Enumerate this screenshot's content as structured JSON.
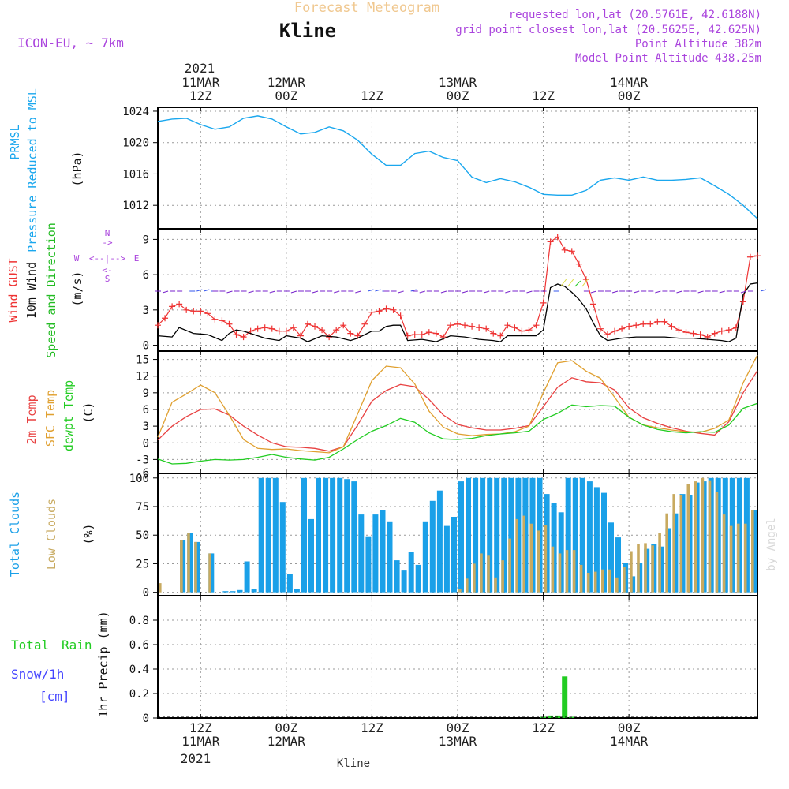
{
  "header": {
    "title": "Forecast Meteogram",
    "station": "Kline",
    "model": "ICON-EU, ~ 7km",
    "requested": "requested lon,lat (20.5761E, 42.6188N)",
    "gridpoint": "grid point closest lon,lat (20.5625E, 42.625N)",
    "point_alt": "Point Altitude 382m",
    "model_alt": "Model Point Altitude 438.25m",
    "footer_station": "Kline",
    "watermark": "by Angel"
  },
  "time_axis": {
    "hour_start": 0,
    "hour_end": 84,
    "top_year": "2021",
    "bottom_year": "2021",
    "ticks": [
      {
        "hour": 6,
        "top": [
          "11MAR",
          "12Z"
        ],
        "bottom": [
          "12Z",
          "11MAR"
        ]
      },
      {
        "hour": 18,
        "top": [
          "12MAR",
          "00Z"
        ],
        "bottom": [
          "00Z",
          "12MAR"
        ]
      },
      {
        "hour": 30,
        "top": [
          "12Z"
        ],
        "bottom": [
          "12Z"
        ]
      },
      {
        "hour": 42,
        "top": [
          "13MAR",
          "00Z"
        ],
        "bottom": [
          "00Z",
          "13MAR"
        ]
      },
      {
        "hour": 54,
        "top": [
          "12Z"
        ],
        "bottom": [
          "12Z"
        ]
      },
      {
        "hour": 66,
        "top": [
          "14MAR",
          "00Z"
        ],
        "bottom": [
          "00Z",
          "14MAR"
        ]
      }
    ]
  },
  "legend": {
    "pressure": [
      "PRMSL",
      "Pressure Reduced to MSL"
    ],
    "pressure_unit": "(hPa)",
    "wind": [
      "Wind GUST",
      "10m Wind",
      "Speed and Direction"
    ],
    "wind_unit": "(m/s)",
    "compass": {
      "n": "N",
      "s": "S",
      "w": "W",
      "e": "E"
    },
    "temp": [
      "2m Temp",
      "SFC Temp",
      "dewpt Temp"
    ],
    "temp_unit": "(C)",
    "clouds": [
      "Total Clouds",
      "Low Clouds"
    ],
    "clouds_unit": "(%)",
    "precip": [
      "Total",
      "Rain",
      "Snow/1h",
      "[cm]"
    ],
    "precip_unit": "1hr Precip (mm)"
  },
  "colors": {
    "pressure": "#1aa7ee",
    "gust": "#ee3333",
    "wind": "#000000",
    "wind_arrow": "#7722cc",
    "t2m": "#e84040",
    "tsfc": "#e0a030",
    "dewpt": "#22cc22",
    "total_cloud": "#1aa0e8",
    "low_cloud": "#c8aa60",
    "rain": "#22cc22",
    "snow": "#4444ff",
    "title_color": "#f0c890",
    "meta_color": "#aa44dd"
  },
  "chart_data": [
    {
      "type": "line",
      "name": "pressure",
      "title": "PRMSL",
      "ylabel": "(hPa)",
      "ylim": [
        1009,
        1024.5
      ],
      "yticks": [
        1012,
        1016,
        1020,
        1024
      ],
      "series": [
        {
          "name": "PRMSL",
          "x": [
            0,
            2,
            4,
            6,
            8,
            10,
            12,
            14,
            16,
            18,
            20,
            22,
            24,
            26,
            28,
            30,
            32,
            34,
            36,
            38,
            40,
            42,
            44,
            46,
            48,
            50,
            52,
            54,
            56,
            58,
            60,
            62,
            64,
            66,
            68,
            70,
            72,
            74,
            76,
            78,
            80,
            82,
            84
          ],
          "values": [
            1022.7,
            1023.0,
            1023.1,
            1022.3,
            1021.7,
            1022.0,
            1023.1,
            1023.4,
            1023.0,
            1022.0,
            1021.1,
            1021.3,
            1022.0,
            1021.5,
            1020.3,
            1018.5,
            1017.1,
            1017.1,
            1018.6,
            1018.9,
            1018.1,
            1017.7,
            1015.6,
            1014.9,
            1015.4,
            1015.0,
            1014.3,
            1013.4,
            1013.3,
            1013.3,
            1013.9,
            1015.2,
            1015.5,
            1015.2,
            1015.6,
            1015.2,
            1015.2,
            1015.3,
            1015.5,
            1014.5,
            1013.4,
            1012.0,
            1010.3
          ]
        }
      ]
    },
    {
      "type": "line",
      "name": "wind",
      "title": "Wind GUST / 10m Wind",
      "ylabel": "(m/s)",
      "ylim": [
        -0.5,
        9.9
      ],
      "yticks": [
        0,
        3,
        6,
        9
      ],
      "series": [
        {
          "name": "Wind GUST",
          "x": [
            0,
            1,
            2,
            3,
            4,
            5,
            6,
            7,
            8,
            9,
            10,
            11,
            12,
            13,
            14,
            15,
            16,
            17,
            18,
            19,
            20,
            21,
            22,
            23,
            24,
            25,
            26,
            27,
            28,
            29,
            30,
            31,
            32,
            33,
            34,
            35,
            36,
            37,
            38,
            39,
            40,
            41,
            42,
            43,
            44,
            45,
            46,
            47,
            48,
            49,
            50,
            51,
            52,
            53,
            54,
            55,
            56,
            57,
            58,
            59,
            60,
            61,
            62,
            63,
            64,
            65,
            66,
            67,
            68,
            69,
            70,
            71,
            72,
            73,
            74,
            75,
            76,
            77,
            78,
            79,
            80,
            81,
            82,
            83,
            84
          ],
          "values": [
            1.7,
            2.3,
            3.3,
            3.5,
            3.0,
            2.9,
            2.9,
            2.7,
            2.2,
            2.1,
            1.8,
            0.9,
            0.7,
            1.2,
            1.4,
            1.5,
            1.4,
            1.2,
            1.2,
            1.5,
            0.8,
            1.8,
            1.6,
            1.3,
            0.7,
            1.3,
            1.7,
            1.0,
            0.8,
            1.8,
            2.8,
            2.9,
            3.1,
            3.0,
            2.5,
            0.8,
            0.9,
            0.9,
            1.1,
            1.0,
            0.7,
            1.7,
            1.8,
            1.7,
            1.6,
            1.5,
            1.4,
            1.0,
            0.8,
            1.7,
            1.5,
            1.2,
            1.3,
            1.7,
            3.6,
            8.8,
            9.2,
            8.1,
            8.0,
            6.9,
            5.6,
            3.5,
            1.4,
            0.9,
            1.2,
            1.4,
            1.6,
            1.7,
            1.8,
            1.8,
            2.0,
            2.0,
            1.6,
            1.3,
            1.1,
            1.0,
            0.9,
            0.7,
            1.0,
            1.2,
            1.3,
            1.5,
            3.7,
            7.5,
            7.6
          ]
        },
        {
          "name": "10m Wind",
          "x": [
            0,
            2,
            3,
            5,
            7,
            9,
            10,
            11,
            12,
            13,
            15,
            17,
            18,
            20,
            21,
            23,
            25,
            27,
            28,
            30,
            31,
            32,
            33,
            34,
            35,
            37,
            39,
            41,
            43,
            45,
            47,
            48,
            49,
            51,
            53,
            54,
            55,
            56,
            57,
            58,
            59,
            60,
            61,
            62,
            63,
            65,
            67,
            69,
            71,
            73,
            75,
            77,
            79,
            80,
            81,
            82,
            83,
            84
          ],
          "values": [
            0.8,
            0.7,
            1.5,
            1.0,
            0.9,
            0.4,
            1.0,
            1.3,
            1.2,
            1.0,
            0.6,
            0.4,
            0.8,
            0.6,
            0.3,
            0.8,
            0.7,
            0.4,
            0.6,
            1.2,
            1.2,
            1.6,
            1.7,
            1.7,
            0.4,
            0.5,
            0.3,
            0.8,
            0.7,
            0.5,
            0.4,
            0.3,
            0.8,
            0.8,
            0.8,
            1.3,
            4.9,
            5.2,
            5.0,
            4.5,
            3.9,
            3.1,
            1.9,
            0.8,
            0.4,
            0.6,
            0.7,
            0.7,
            0.7,
            0.6,
            0.6,
            0.5,
            0.4,
            0.3,
            0.6,
            4.3,
            5.2,
            5.3
          ]
        }
      ]
    },
    {
      "type": "line",
      "name": "temperature",
      "title": "2m Temp / SFC Temp / dewpt Temp",
      "ylabel": "(C)",
      "ylim": [
        -5.5,
        16.5
      ],
      "yticks": [
        -3,
        0,
        3,
        6,
        9,
        12,
        15
      ],
      "series": [
        {
          "name": "2m Temp",
          "x": [
            0,
            2,
            4,
            6,
            8,
            10,
            12,
            14,
            16,
            18,
            20,
            22,
            24,
            26,
            28,
            30,
            32,
            34,
            36,
            38,
            40,
            42,
            44,
            46,
            48,
            50,
            52,
            54,
            56,
            58,
            60,
            62,
            64,
            66,
            68,
            70,
            72,
            74,
            76,
            78,
            80,
            82,
            84
          ],
          "values": [
            0.5,
            3.0,
            4.7,
            6.0,
            6.1,
            5.0,
            3.0,
            1.4,
            0.0,
            -0.7,
            -0.8,
            -1.0,
            -1.5,
            -0.7,
            3.2,
            7.5,
            9.4,
            10.5,
            10.1,
            7.8,
            5.0,
            3.3,
            2.7,
            2.3,
            2.3,
            2.6,
            3.1,
            6.5,
            10.0,
            11.7,
            11.0,
            10.8,
            9.5,
            6.3,
            4.5,
            3.5,
            2.7,
            2.1,
            1.7,
            1.4,
            3.8,
            9.0,
            13.0
          ]
        },
        {
          "name": "SFC Temp",
          "x": [
            0,
            2,
            4,
            6,
            8,
            10,
            12,
            14,
            16,
            18,
            20,
            22,
            24,
            26,
            28,
            30,
            32,
            34,
            36,
            38,
            40,
            42,
            44,
            46,
            48,
            50,
            52,
            54,
            56,
            58,
            60,
            62,
            64,
            66,
            68,
            70,
            72,
            74,
            76,
            78,
            80,
            82,
            84
          ],
          "values": [
            1.0,
            7.3,
            8.8,
            10.4,
            9.0,
            5.0,
            0.6,
            -1.0,
            -1.2,
            -1.1,
            -1.4,
            -1.6,
            -1.8,
            -0.7,
            5.2,
            11.2,
            13.8,
            13.5,
            10.6,
            5.7,
            2.8,
            1.6,
            1.3,
            1.5,
            1.6,
            2.0,
            3.0,
            9.0,
            14.4,
            14.8,
            12.9,
            11.6,
            8.2,
            4.6,
            3.2,
            2.7,
            2.3,
            2.0,
            1.9,
            2.6,
            4.1,
            10.8,
            15.8
          ]
        },
        {
          "name": "dewpt Temp",
          "x": [
            0,
            2,
            4,
            6,
            8,
            10,
            12,
            14,
            16,
            18,
            20,
            22,
            24,
            26,
            28,
            30,
            32,
            34,
            36,
            38,
            40,
            42,
            44,
            46,
            48,
            50,
            52,
            54,
            56,
            58,
            60,
            62,
            64,
            66,
            68,
            70,
            72,
            74,
            76,
            78,
            80,
            82,
            84
          ],
          "values": [
            -2.9,
            -3.8,
            -3.7,
            -3.3,
            -3.0,
            -3.1,
            -3.0,
            -2.6,
            -2.1,
            -2.6,
            -2.9,
            -3.1,
            -2.6,
            -1.1,
            0.6,
            2.1,
            3.1,
            4.4,
            3.7,
            1.8,
            0.7,
            0.6,
            0.8,
            1.3,
            1.6,
            1.8,
            2.1,
            4.2,
            5.3,
            6.8,
            6.5,
            6.7,
            6.6,
            4.6,
            3.2,
            2.4,
            2.0,
            1.8,
            2.0,
            1.9,
            3.2,
            6.2,
            7.1
          ]
        }
      ]
    },
    {
      "type": "bar",
      "name": "clouds",
      "title": "Total Clouds / Low Clouds",
      "ylabel": "(%)",
      "ylim": [
        -3,
        104
      ],
      "yticks": [
        0,
        25,
        50,
        75,
        100
      ],
      "series": [
        {
          "name": "Total Clouds",
          "values": [
            0,
            0,
            0,
            46,
            52,
            44,
            0,
            34,
            0,
            1,
            1,
            2,
            27,
            3,
            100,
            100,
            100,
            79,
            16,
            3,
            100,
            64,
            100,
            100,
            100,
            100,
            99,
            97,
            68,
            49,
            68,
            72,
            62,
            28,
            19,
            35,
            24,
            62,
            80,
            89,
            58,
            66,
            97,
            100,
            100,
            100,
            100,
            100,
            100,
            100,
            100,
            100,
            100,
            100,
            86,
            78,
            70,
            100,
            100,
            100,
            97,
            92,
            87,
            61,
            48,
            26,
            14,
            26,
            38,
            42,
            40,
            56,
            69,
            86,
            85,
            96,
            97,
            100,
            100,
            100,
            100,
            100,
            100,
            72
          ]
        },
        {
          "name": "Low Clouds",
          "values": [
            8,
            0,
            0,
            46,
            52,
            44,
            0,
            34,
            0,
            0,
            0,
            0,
            0,
            0,
            0,
            0,
            0,
            0,
            0,
            0,
            0,
            0,
            0,
            0,
            0,
            0,
            0,
            0,
            0,
            0,
            0,
            0,
            0,
            0,
            0,
            0,
            0,
            0,
            0,
            0,
            0,
            0,
            3,
            12,
            25,
            34,
            32,
            13,
            28,
            47,
            64,
            67,
            60,
            54,
            59,
            40,
            34,
            37,
            37,
            24,
            17,
            18,
            20,
            20,
            13,
            22,
            36,
            42,
            43,
            41,
            52,
            69,
            86,
            85,
            95,
            97,
            100,
            98,
            88,
            68,
            58,
            60,
            60,
            72
          ]
        }
      ]
    },
    {
      "type": "bar",
      "name": "precipitation",
      "title": "1hr Precip",
      "ylabel": "1hr Precip (mm)",
      "ylim": [
        0,
        1.0
      ],
      "yticks": [
        0,
        0.2,
        0.4,
        0.6,
        0.8
      ],
      "series": [
        {
          "name": "Total Rain",
          "x": [
            54,
            55,
            56,
            57,
            58
          ],
          "values": [
            0.01,
            0.02,
            0.02,
            0.34,
            0.01
          ]
        }
      ]
    }
  ]
}
